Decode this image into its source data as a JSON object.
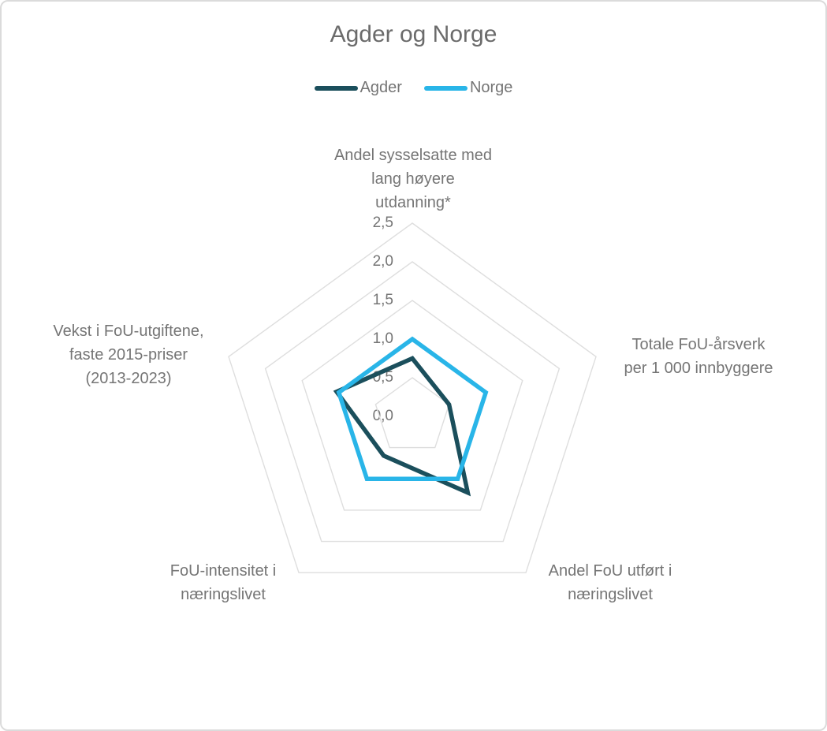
{
  "title": "Agder og Norge",
  "legend": [
    {
      "name": "Agder",
      "color": "#1B4F5C"
    },
    {
      "name": "Norge",
      "color": "#29B5E8"
    }
  ],
  "chart_data": {
    "type": "radar",
    "title": "Agder og Norge",
    "categories": [
      "Andel sysselsatte med lang høyere utdanning*",
      "Totale FoU-årsverk per 1 000 innbyggere",
      "Andel FoU utført i næringslivet",
      "FoU-intensitet i næringslivet",
      "Vekst i FoU-utgiftene, faste 2015-priser (2013-2023)"
    ],
    "axis_label_lines": [
      [
        "Andel sysselsatte med",
        "lang høyere",
        "utdanning*"
      ],
      [
        "Totale FoU-årsverk",
        "per 1 000 innbyggere"
      ],
      [
        "Andel FoU utført i",
        "næringslivet"
      ],
      [
        "FoU-intensitet i",
        "næringslivet"
      ],
      [
        "Vekst i FoU-utgiftene,",
        "faste 2015-priser",
        "(2013-2023)"
      ]
    ],
    "series": [
      {
        "name": "Agder",
        "color": "#1B4F5C",
        "values": [
          0.75,
          0.5,
          1.22,
          0.63,
          1.03
        ]
      },
      {
        "name": "Norge",
        "color": "#29B5E8",
        "values": [
          1.0,
          1.0,
          1.0,
          1.0,
          1.0
        ]
      }
    ],
    "ticks": [
      0.0,
      0.5,
      1.0,
      1.5,
      2.0,
      2.5
    ],
    "tick_labels": [
      "0,0",
      "0,5",
      "1,0",
      "1,5",
      "2,0",
      "2,5"
    ],
    "rings": [
      0.5,
      1.0,
      1.5,
      2.0,
      2.5
    ],
    "scale_max": 2.5,
    "grid_color": "#dedede",
    "text_color": "#757575",
    "legend_position": "top",
    "grid": "concentric pentagon rings, no radial spokes, no fill"
  }
}
